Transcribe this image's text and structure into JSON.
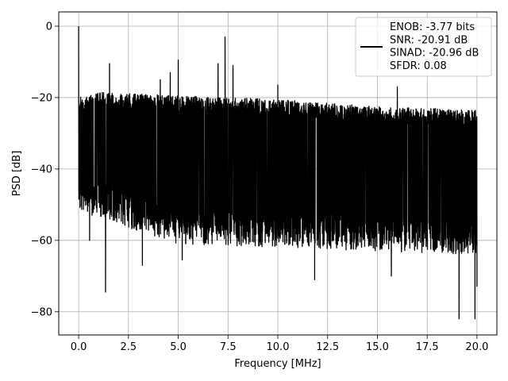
{
  "chart_data": {
    "type": "line",
    "xlabel": "Frequency [MHz]",
    "ylabel": "PSD [dB]",
    "xlim": [
      -1.0,
      21.0
    ],
    "ylim": [
      -86.5,
      4.0
    ],
    "xticks": [
      0.0,
      2.5,
      5.0,
      7.5,
      10.0,
      12.5,
      15.0,
      17.5,
      20.0
    ],
    "xtick_labels": [
      "0.0",
      "2.5",
      "5.0",
      "7.5",
      "10.0",
      "12.5",
      "15.0",
      "17.5",
      "20.0"
    ],
    "yticks": [
      0,
      -20,
      -40,
      -60,
      -80
    ],
    "ytick_labels": [
      "0",
      "−20",
      "−40",
      "−60",
      "−80"
    ],
    "grid": true,
    "legend_position": "top-right",
    "series": [
      {
        "color": "#000000",
        "x_range": [
          0.0,
          20.0
        ],
        "upper_envelope_approx": [
          [
            0.0,
            -20
          ],
          [
            1.0,
            -18.5
          ],
          [
            5.0,
            -19.5
          ],
          [
            10.0,
            -20.5
          ],
          [
            15.0,
            -22.5
          ],
          [
            20.0,
            -23.5
          ]
        ],
        "lower_envelope_approx": [
          [
            0.0,
            -48
          ],
          [
            5.0,
            -57
          ],
          [
            10.0,
            -58
          ],
          [
            15.0,
            -59
          ],
          [
            20.0,
            -60
          ]
        ],
        "spikes": [
          {
            "x": 0.0,
            "y": 0.0
          },
          {
            "x": 1.55,
            "y": -10.5
          },
          {
            "x": 4.1,
            "y": -15.0
          },
          {
            "x": 4.6,
            "y": -13.0
          },
          {
            "x": 5.0,
            "y": -9.5
          },
          {
            "x": 7.0,
            "y": -10.5
          },
          {
            "x": 7.35,
            "y": -3.0
          },
          {
            "x": 7.75,
            "y": -11.0
          },
          {
            "x": 10.0,
            "y": -16.5
          },
          {
            "x": 16.0,
            "y": -17.0
          }
        ],
        "dips": [
          {
            "x": 0.55,
            "y": -60.0
          },
          {
            "x": 1.35,
            "y": -74.5
          },
          {
            "x": 3.2,
            "y": -67.0
          },
          {
            "x": 5.2,
            "y": -65.5
          },
          {
            "x": 11.85,
            "y": -71.0
          },
          {
            "x": 15.7,
            "y": -70.0
          },
          {
            "x": 19.1,
            "y": -82.0
          },
          {
            "x": 19.9,
            "y": -82.0
          },
          {
            "x": 20.0,
            "y": -73.0
          }
        ]
      }
    ],
    "legend": {
      "lines": [
        "ENOB: -3.77 bits",
        "SNR: -20.91 dB",
        "SINAD: -20.96 dB",
        "SFDR: 0.08"
      ]
    }
  }
}
